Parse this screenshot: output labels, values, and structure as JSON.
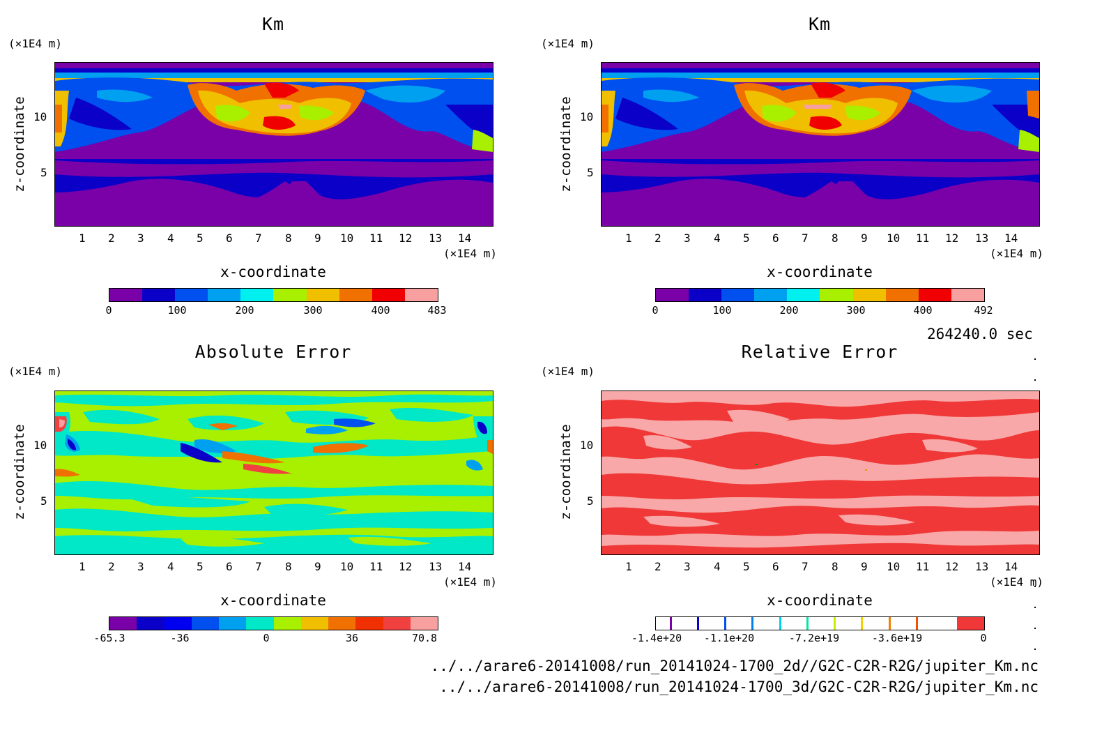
{
  "chart_data": [
    {
      "type": "heatmap",
      "title": "Km",
      "xlabel": "x-coordinate",
      "ylabel": "z-coordinate",
      "x_unit": "(×1E4 m)",
      "y_unit": "(×1E4 m)",
      "xlim": [
        0,
        14.8
      ],
      "ylim": [
        0,
        14.2
      ],
      "xticks": [
        "1",
        "2",
        "3",
        "4",
        "5",
        "6",
        "7",
        "8",
        "9",
        "10",
        "11",
        "12",
        "13",
        "14"
      ],
      "yticks": [
        "5",
        "10"
      ],
      "colorbar": {
        "colors": [
          "#7a00a8",
          "#0a00c8",
          "#0050f0",
          "#00a0f0",
          "#00f0f0",
          "#a8f000",
          "#f0c000",
          "#f07000",
          "#f00000",
          "#f8a0a0"
        ],
        "ticks": [
          "0",
          "100",
          "200",
          "300",
          "400",
          "483"
        ]
      }
    },
    {
      "type": "heatmap",
      "title": "Km",
      "xlabel": "x-coordinate",
      "ylabel": "z-coordinate",
      "x_unit": "(×1E4 m)",
      "y_unit": "(×1E4 m)",
      "xlim": [
        0,
        14.8
      ],
      "ylim": [
        0,
        14.2
      ],
      "xticks": [
        "1",
        "2",
        "3",
        "4",
        "5",
        "6",
        "7",
        "8",
        "9",
        "10",
        "11",
        "12",
        "13",
        "14"
      ],
      "yticks": [
        "5",
        "10"
      ],
      "colorbar": {
        "colors": [
          "#7a00a8",
          "#0a00c8",
          "#0050f0",
          "#00a0f0",
          "#00f0f0",
          "#a8f000",
          "#f0c000",
          "#f07000",
          "#f00000",
          "#f8a0a0"
        ],
        "ticks": [
          "0",
          "100",
          "200",
          "300",
          "400",
          "492"
        ]
      }
    },
    {
      "type": "heatmap",
      "title": "Absolute Error",
      "xlabel": "x-coordinate",
      "ylabel": "z-coordinate",
      "x_unit": "(×1E4 m)",
      "y_unit": "(×1E4 m)",
      "xlim": [
        0,
        14.8
      ],
      "ylim": [
        0,
        14.2
      ],
      "xticks": [
        "1",
        "2",
        "3",
        "4",
        "5",
        "6",
        "7",
        "8",
        "9",
        "10",
        "11",
        "12",
        "13",
        "14"
      ],
      "yticks": [
        "5",
        "10"
      ],
      "colorbar": {
        "colors": [
          "#7a00a8",
          "#0a00c8",
          "#0000f0",
          "#0050f0",
          "#00a0f0",
          "#00e8c8",
          "#a8f000",
          "#f0c000",
          "#f07000",
          "#f03000",
          "#f04040",
          "#f8a0a0"
        ],
        "ticks": [
          "-65.3",
          "-36",
          "0",
          "36",
          "70.8"
        ]
      }
    },
    {
      "type": "heatmap",
      "title": "Relative Error",
      "xlabel": "x-coordinate",
      "ylabel": "z-coordinate",
      "x_unit": "(×1E4 m)",
      "y_unit": "(×1E4 m)",
      "xlim": [
        0,
        14.8
      ],
      "ylim": [
        0,
        14.2
      ],
      "xticks": [
        "1",
        "2",
        "3",
        "4",
        "5",
        "6",
        "7",
        "8",
        "9",
        "10",
        "11",
        "12",
        "13",
        "14"
      ],
      "yticks": [
        "5",
        "10"
      ],
      "colorbar": {
        "colors": [
          "#ffffff",
          "#ffffff",
          "#ffffff",
          "#ffffff",
          "#ffffff",
          "#ffffff",
          "#ffffff",
          "#ffffff",
          "#ffffff",
          "#ffffff",
          "#ffffff",
          "#f03838"
        ],
        "marks": [
          "#7a00a8",
          "#0a00c8",
          "#0050f0",
          "#0080f0",
          "#00d0f0",
          "#00e8a0",
          "#c8f000",
          "#f0d000",
          "#f08000",
          "#f05000"
        ],
        "ticks": [
          "-1.4e+20",
          "-1.1e+20",
          "-7.2e+19",
          "-3.6e+19",
          "0"
        ]
      }
    }
  ],
  "time_label": "264240.0 sec",
  "file_paths": [
    "../../arare6-20141008/run_20141024-1700_2d//G2C-C2R-R2G/jupiter_Km.nc",
    "../../arare6-20141008/run_20141024-1700_3d/G2C-C2R-R2G/jupiter_Km.nc"
  ]
}
